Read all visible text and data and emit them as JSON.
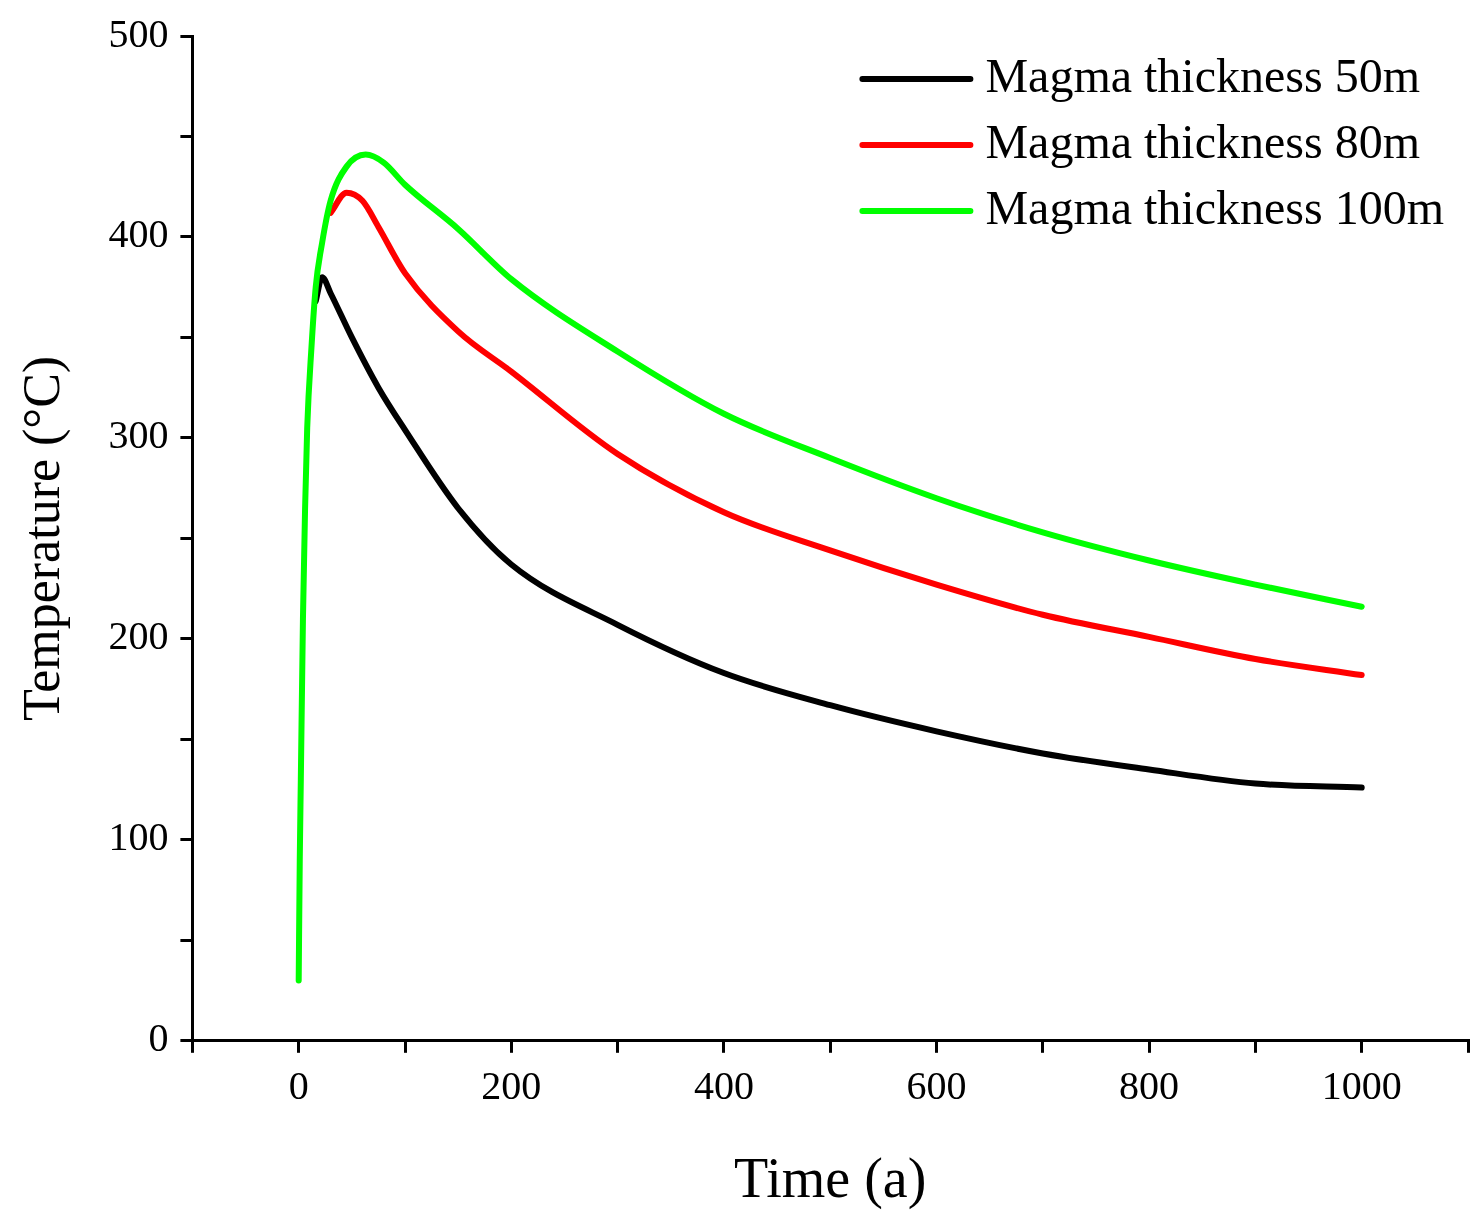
{
  "chart_data": {
    "type": "line",
    "xlabel": "Time (a)",
    "ylabel": "Temperature (°C)",
    "xlim": [
      -100,
      1100
    ],
    "ylim": [
      0,
      500
    ],
    "xticks": [
      {
        "value": -100,
        "label": null
      },
      0,
      {
        "value": 100,
        "label": null
      },
      200,
      {
        "value": 300,
        "label": null
      },
      400,
      {
        "value": 500,
        "label": null
      },
      600,
      {
        "value": 700,
        "label": null
      },
      800,
      {
        "value": 900,
        "label": null
      },
      1000,
      {
        "value": 1100,
        "label": null
      }
    ],
    "yticks": [
      0,
      {
        "value": 50,
        "label": null
      },
      100,
      {
        "value": 150,
        "label": null
      },
      200,
      {
        "value": 250,
        "label": null
      },
      300,
      {
        "value": 350,
        "label": null
      },
      400,
      {
        "value": 450,
        "label": null
      },
      500
    ],
    "grid": false,
    "legend": "top right",
    "marker": "none",
    "line_style": "solid",
    "series": [
      {
        "name": "Magma thickness 50m",
        "color": "#000000",
        "x": [
          16,
          22,
          30,
          50,
          75,
          100,
          150,
          200,
          300,
          400,
          500,
          600,
          700,
          800,
          900,
          1000
        ],
        "values": [
          368,
          380,
          372,
          350,
          325,
          304,
          265,
          237,
          207,
          183,
          167,
          154,
          143,
          135,
          128,
          126
        ]
      },
      {
        "name": "Magma thickness 80m",
        "color": "#ff0000",
        "x": [
          30,
          45,
          60,
          75,
          100,
          150,
          200,
          300,
          400,
          500,
          600,
          700,
          800,
          900,
          1000
        ],
        "values": [
          412,
          422,
          418,
          405,
          382,
          353,
          333,
          292,
          263,
          244,
          227,
          212,
          201,
          190,
          182
        ]
      },
      {
        "name": "Magma thickness 100m",
        "color": "#00ff00",
        "x": [
          0,
          1,
          2,
          4,
          6,
          8,
          12,
          16,
          22,
          30,
          45,
          63,
          80,
          100,
          150,
          200,
          300,
          400,
          500,
          600,
          700,
          800,
          900,
          1000
        ],
        "values": [
          30,
          90,
          130,
          210,
          265,
          305,
          345,
          375,
          397,
          418,
          435,
          441,
          437,
          426,
          404,
          379,
          343,
          312,
          290,
          270,
          253,
          239,
          227,
          216
        ]
      }
    ]
  }
}
